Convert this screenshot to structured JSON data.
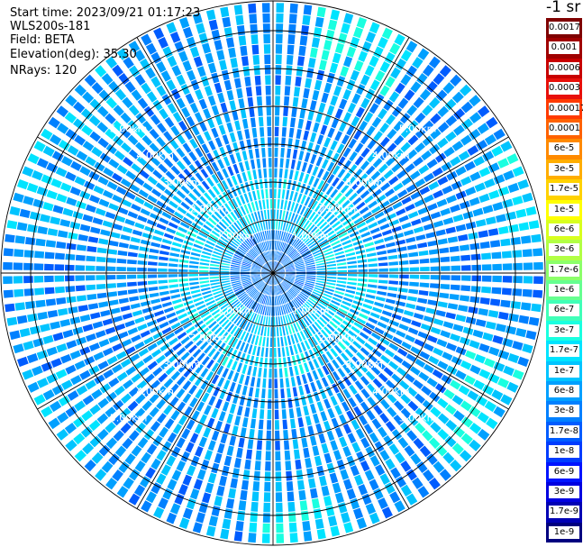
{
  "header": {
    "start_time": "Start time: 2023/09/21 01:17:23",
    "instrument": "WLS200s-181",
    "field": "Field: BETA",
    "elevation": "Elevation(deg): 35.30",
    "nrays": "NRays: 120"
  },
  "legend": {
    "title": "-1 sr",
    "entries": [
      {
        "label": "0.0017",
        "color": "#7f0000"
      },
      {
        "label": "0.001",
        "color": "#a00000"
      },
      {
        "label": "0.0006",
        "color": "#c80000"
      },
      {
        "label": "0.0003",
        "color": "#e8100a"
      },
      {
        "label": "0.00017",
        "color": "#ff3a00"
      },
      {
        "label": "0.0001",
        "color": "#ff6200"
      },
      {
        "label": "6e-5",
        "color": "#ff8a00"
      },
      {
        "label": "3e-5",
        "color": "#ffae00"
      },
      {
        "label": "1.7e-5",
        "color": "#ffd200"
      },
      {
        "label": "1e-5",
        "color": "#ffff00"
      },
      {
        "label": "6e-6",
        "color": "#d8ff1e"
      },
      {
        "label": "3e-6",
        "color": "#b2ff44"
      },
      {
        "label": "1.7e-6",
        "color": "#8cff6a"
      },
      {
        "label": "1e-6",
        "color": "#66ff90"
      },
      {
        "label": "6e-7",
        "color": "#40ffb8"
      },
      {
        "label": "3e-7",
        "color": "#1affe0"
      },
      {
        "label": "1.7e-7",
        "color": "#00e4ff"
      },
      {
        "label": "1e-7",
        "color": "#00c4ff"
      },
      {
        "label": "6e-8",
        "color": "#00a0ff"
      },
      {
        "label": "3e-8",
        "color": "#0080ff"
      },
      {
        "label": "1.7e-8",
        "color": "#005cff"
      },
      {
        "label": "1e-8",
        "color": "#003cff"
      },
      {
        "label": "6e-9",
        "color": "#0014ff"
      },
      {
        "label": "3e-9",
        "color": "#0000e0"
      },
      {
        "label": "1.7e-9",
        "color": "#0000b4"
      },
      {
        "label": "1e-9",
        "color": "#00007f"
      }
    ]
  },
  "chart_data": {
    "type": "heatmap",
    "subtype": "polar-ppi",
    "field": "BETA",
    "rays": 120,
    "range_rings": [
      "1.00km",
      "2.00km",
      "3.00km",
      "4.00km",
      "5.00km"
    ],
    "ring_label_quadrants": [
      "top-left",
      "top-right",
      "bottom-left",
      "bottom-right"
    ],
    "radial_lines_deg": [
      0,
      30,
      60,
      90,
      120,
      150,
      180,
      210,
      240,
      270,
      300,
      330
    ],
    "dominant_values": [
      "1e-8",
      "6e-8",
      "1e-7",
      "1.7e-7"
    ],
    "enhanced_regions": [
      {
        "where": "north-north-east outer edge",
        "value": "1e-6"
      },
      {
        "where": "east outer edge",
        "value": "1e-6"
      },
      {
        "where": "south-east outer edge",
        "value": "1e-6"
      },
      {
        "where": "south outer edge",
        "value": "1e-6"
      }
    ]
  }
}
